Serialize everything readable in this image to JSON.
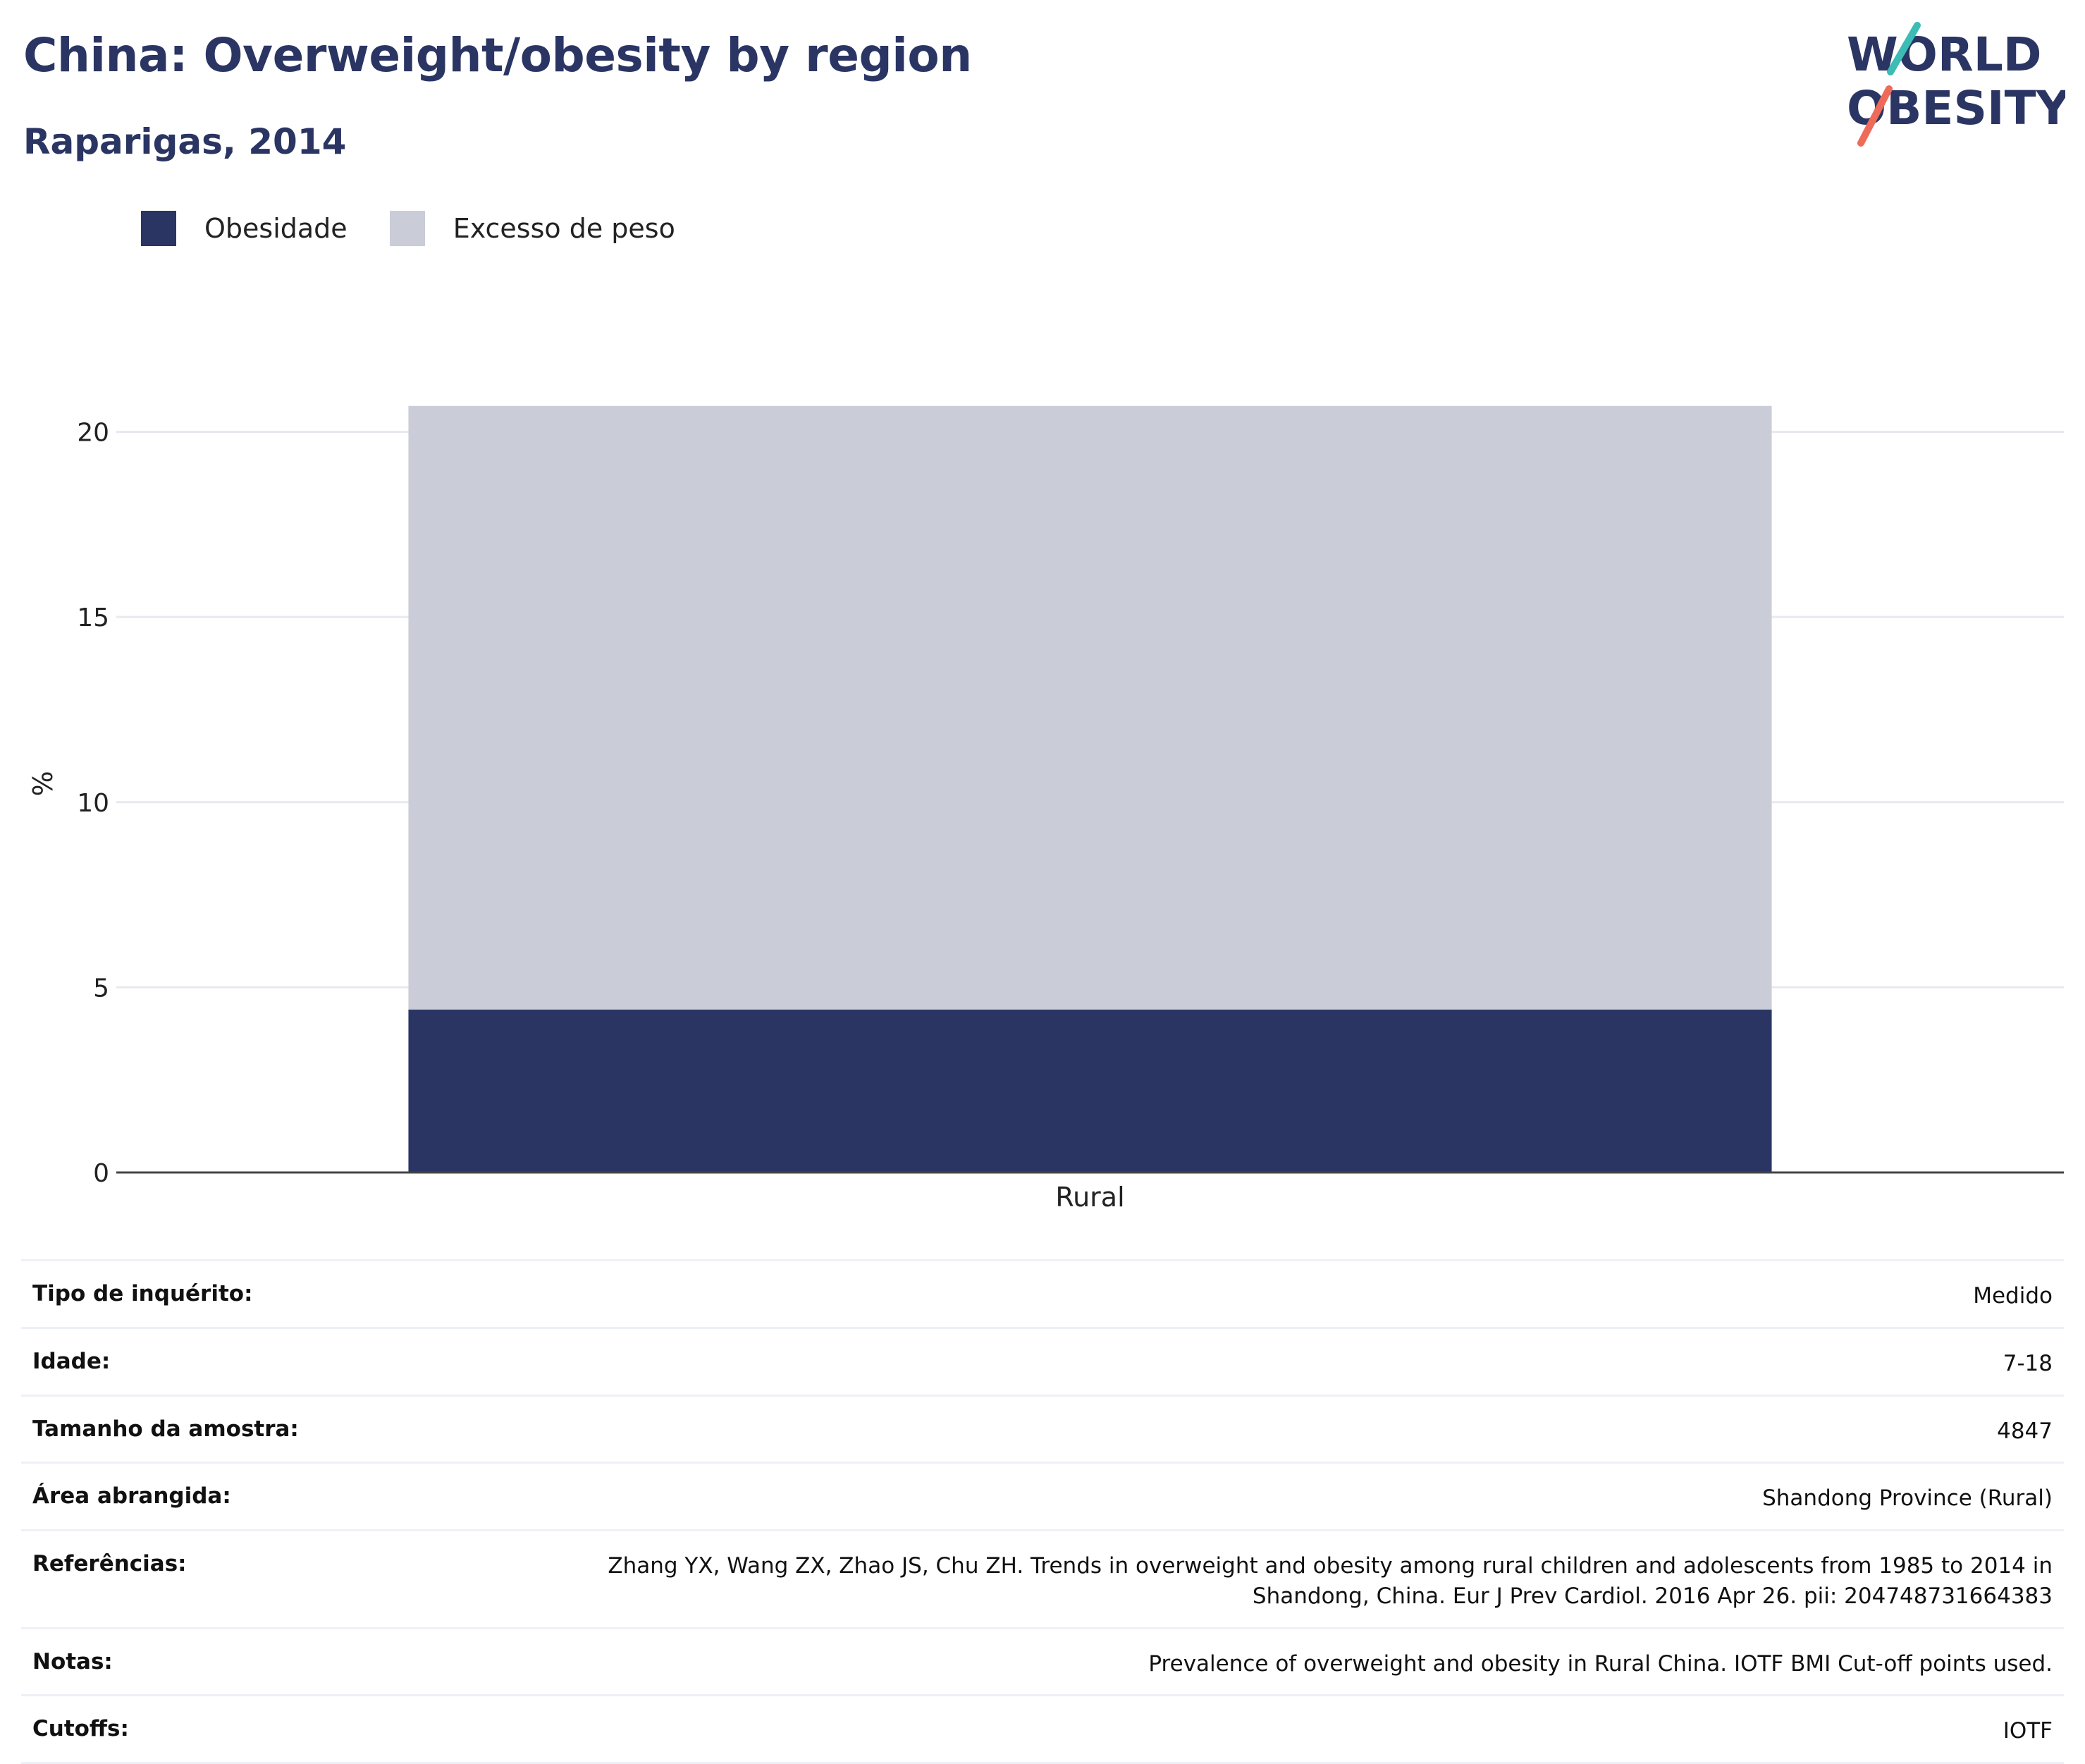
{
  "header": {
    "title": "China: Overweight/obesity by region",
    "subtitle": "Raparigas, 2014"
  },
  "logo": {
    "line1": "WORLD",
    "line2": "OBESITY",
    "colors": {
      "text": "#2a3563",
      "teal": "#3bbcb4",
      "coral": "#ee6b5a"
    }
  },
  "legend": [
    {
      "label": "Obesidade",
      "color": "#2a3563"
    },
    {
      "label": "Excesso de peso",
      "color": "#cacdd8"
    }
  ],
  "chart_data": {
    "type": "bar",
    "stacked": true,
    "categories": [
      "Rural"
    ],
    "series": [
      {
        "name": "Obesidade",
        "values": [
          4.4
        ],
        "color": "#2a3563"
      },
      {
        "name": "Excesso de peso",
        "values": [
          16.3
        ],
        "color": "#cacdd8"
      }
    ],
    "title": "China: Overweight/obesity by region",
    "subtitle": "Raparigas, 2014",
    "xlabel": "",
    "ylabel": "%",
    "ylim": [
      0,
      21
    ],
    "yticks": [
      0,
      5,
      10,
      15,
      20
    ],
    "grid": true,
    "legend_position": "top-left"
  },
  "info": [
    {
      "label": "Tipo de inquérito:",
      "value": "Medido"
    },
    {
      "label": "Idade:",
      "value": "7-18"
    },
    {
      "label": "Tamanho da amostra:",
      "value": "4847"
    },
    {
      "label": "Área abrangida:",
      "value": "Shandong Province (Rural)"
    },
    {
      "label": "Referências:",
      "value": "Zhang YX, Wang ZX, Zhao JS, Chu ZH. Trends in overweight and obesity among rural children and adolescents from 1985 to 2014 in Shandong, China. Eur J Prev Cardiol. 2016 Apr 26. pii: 204748731664383"
    },
    {
      "label": "Notas:",
      "value": "Prevalence of overweight and obesity in Rural China. IOTF BMI Cut-off points used."
    },
    {
      "label": "Cutoffs:",
      "value": "IOTF"
    }
  ]
}
